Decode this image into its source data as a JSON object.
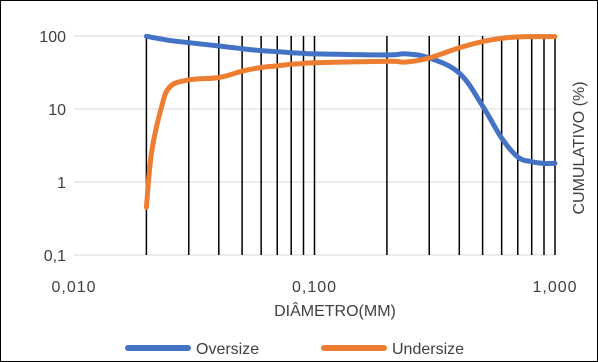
{
  "chart_data": {
    "type": "line",
    "xlabel": "DIÂMETRO(MM)",
    "ylabel": "CUMULATIVO  (%)",
    "x_scale": "log",
    "y_scale": "log",
    "xlim": [
      0.01,
      1.0
    ],
    "ylim": [
      0.1,
      100
    ],
    "x_ticks": [
      {
        "value": 0.01,
        "label": "0,010"
      },
      {
        "value": 0.1,
        "label": "0,100"
      },
      {
        "value": 1.0,
        "label": "1,000"
      }
    ],
    "y_ticks": [
      {
        "value": 100,
        "label": "100"
      },
      {
        "value": 10,
        "label": "10"
      },
      {
        "value": 1,
        "label": "1"
      },
      {
        "value": 0.1,
        "label": "0,1"
      }
    ],
    "vertical_gridlines_x": [
      0.02,
      0.03,
      0.04,
      0.05,
      0.06,
      0.07,
      0.08,
      0.09,
      0.1,
      0.2,
      0.3,
      0.4,
      0.5,
      0.6,
      0.7,
      0.8,
      0.9,
      1.0
    ],
    "horizontal_gridlines": true,
    "legend_position": "bottom",
    "series": [
      {
        "name": "Oversize",
        "color": "#4472C4",
        "points": [
          {
            "x": 0.02,
            "y": 99
          },
          {
            "x": 0.025,
            "y": 87
          },
          {
            "x": 0.03,
            "y": 81
          },
          {
            "x": 0.04,
            "y": 73
          },
          {
            "x": 0.05,
            "y": 67
          },
          {
            "x": 0.06,
            "y": 63
          },
          {
            "x": 0.07,
            "y": 61
          },
          {
            "x": 0.08,
            "y": 59
          },
          {
            "x": 0.09,
            "y": 58
          },
          {
            "x": 0.1,
            "y": 57
          },
          {
            "x": 0.2,
            "y": 55
          },
          {
            "x": 0.24,
            "y": 57
          },
          {
            "x": 0.3,
            "y": 50
          },
          {
            "x": 0.4,
            "y": 31
          },
          {
            "x": 0.5,
            "y": 11
          },
          {
            "x": 0.6,
            "y": 4
          },
          {
            "x": 0.7,
            "y": 2.2
          },
          {
            "x": 0.8,
            "y": 1.9
          },
          {
            "x": 0.9,
            "y": 1.8
          },
          {
            "x": 1.0,
            "y": 1.8
          }
        ]
      },
      {
        "name": "Undersize",
        "color": "#ED7D31",
        "points": [
          {
            "x": 0.02,
            "y": 0.45
          },
          {
            "x": 0.021,
            "y": 2.5
          },
          {
            "x": 0.023,
            "y": 10
          },
          {
            "x": 0.025,
            "y": 20
          },
          {
            "x": 0.03,
            "y": 25
          },
          {
            "x": 0.04,
            "y": 27
          },
          {
            "x": 0.05,
            "y": 33
          },
          {
            "x": 0.06,
            "y": 37
          },
          {
            "x": 0.07,
            "y": 39
          },
          {
            "x": 0.08,
            "y": 41
          },
          {
            "x": 0.09,
            "y": 42
          },
          {
            "x": 0.1,
            "y": 43
          },
          {
            "x": 0.2,
            "y": 45
          },
          {
            "x": 0.24,
            "y": 44
          },
          {
            "x": 0.3,
            "y": 50
          },
          {
            "x": 0.4,
            "y": 69
          },
          {
            "x": 0.5,
            "y": 84
          },
          {
            "x": 0.6,
            "y": 93
          },
          {
            "x": 0.7,
            "y": 97
          },
          {
            "x": 0.8,
            "y": 98
          },
          {
            "x": 0.9,
            "y": 98
          },
          {
            "x": 1.0,
            "y": 98
          }
        ]
      }
    ]
  }
}
